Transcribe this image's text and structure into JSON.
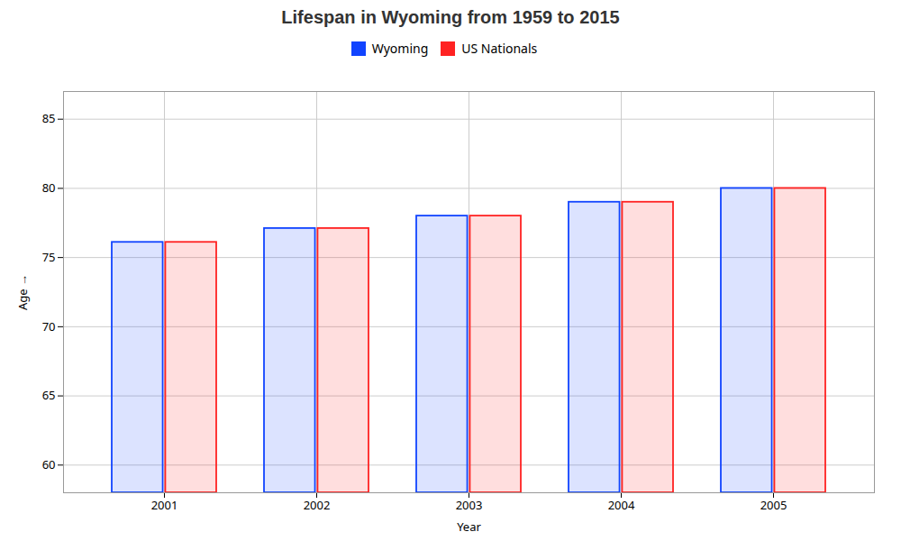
{
  "chart_data": {
    "type": "bar",
    "title": "Lifespan in Wyoming from 1959 to 2015",
    "xlabel": "Year",
    "ylabel": "Age",
    "categories": [
      2001,
      2002,
      2003,
      2004,
      2005
    ],
    "series": [
      {
        "name": "Wyoming",
        "color": "#1144ff",
        "values": [
          76.1,
          77.1,
          78.0,
          79.0,
          80.0
        ]
      },
      {
        "name": "US Nationals",
        "color": "#ff2222",
        "values": [
          76.1,
          77.1,
          78.0,
          79.0,
          80.0
        ]
      }
    ],
    "ylim": [
      58,
      87
    ],
    "yticks": [
      60,
      65,
      70,
      75,
      80,
      85
    ],
    "grid": true,
    "legend": "top"
  }
}
